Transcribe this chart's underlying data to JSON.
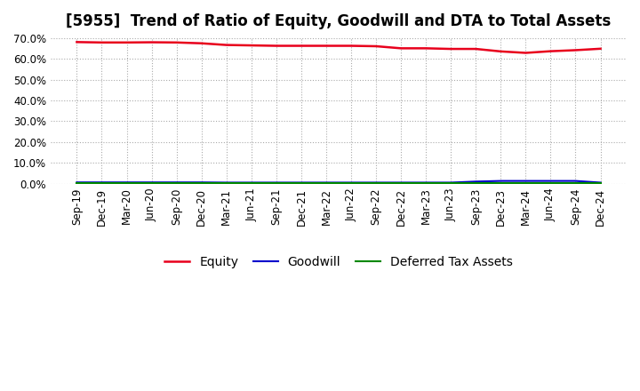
{
  "title": "[5955]  Trend of Ratio of Equity, Goodwill and DTA to Total Assets",
  "x_labels": [
    "Sep-19",
    "Dec-19",
    "Mar-20",
    "Jun-20",
    "Sep-20",
    "Dec-20",
    "Mar-21",
    "Jun-21",
    "Sep-21",
    "Dec-21",
    "Mar-22",
    "Jun-22",
    "Sep-22",
    "Dec-22",
    "Mar-23",
    "Jun-23",
    "Sep-23",
    "Dec-23",
    "Mar-24",
    "Jun-24",
    "Sep-24",
    "Dec-24"
  ],
  "equity": [
    0.681,
    0.679,
    0.679,
    0.68,
    0.679,
    0.675,
    0.667,
    0.665,
    0.663,
    0.663,
    0.663,
    0.663,
    0.661,
    0.651,
    0.651,
    0.648,
    0.648,
    0.636,
    0.629,
    0.637,
    0.642,
    0.649
  ],
  "goodwill": [
    0.006,
    0.006,
    0.006,
    0.006,
    0.006,
    0.006,
    0.005,
    0.005,
    0.005,
    0.005,
    0.005,
    0.005,
    0.005,
    0.005,
    0.005,
    0.005,
    0.01,
    0.013,
    0.013,
    0.013,
    0.013,
    0.005
  ],
  "dta": [
    0.003,
    0.003,
    0.003,
    0.003,
    0.003,
    0.003,
    0.003,
    0.003,
    0.003,
    0.003,
    0.003,
    0.003,
    0.003,
    0.003,
    0.003,
    0.003,
    0.003,
    0.003,
    0.003,
    0.003,
    0.003,
    0.003
  ],
  "equity_color": "#e8001c",
  "goodwill_color": "#0000cc",
  "dta_color": "#008800",
  "ylim": [
    0.0,
    0.7
  ],
  "yticks": [
    0.0,
    0.1,
    0.2,
    0.3,
    0.4,
    0.5,
    0.6,
    0.7
  ],
  "legend_labels": [
    "Equity",
    "Goodwill",
    "Deferred Tax Assets"
  ],
  "bg_color": "#ffffff",
  "plot_bg_color": "#ffffff",
  "grid_color": "#aaaaaa",
  "title_fontsize": 12,
  "tick_fontsize": 8.5,
  "legend_fontsize": 10
}
